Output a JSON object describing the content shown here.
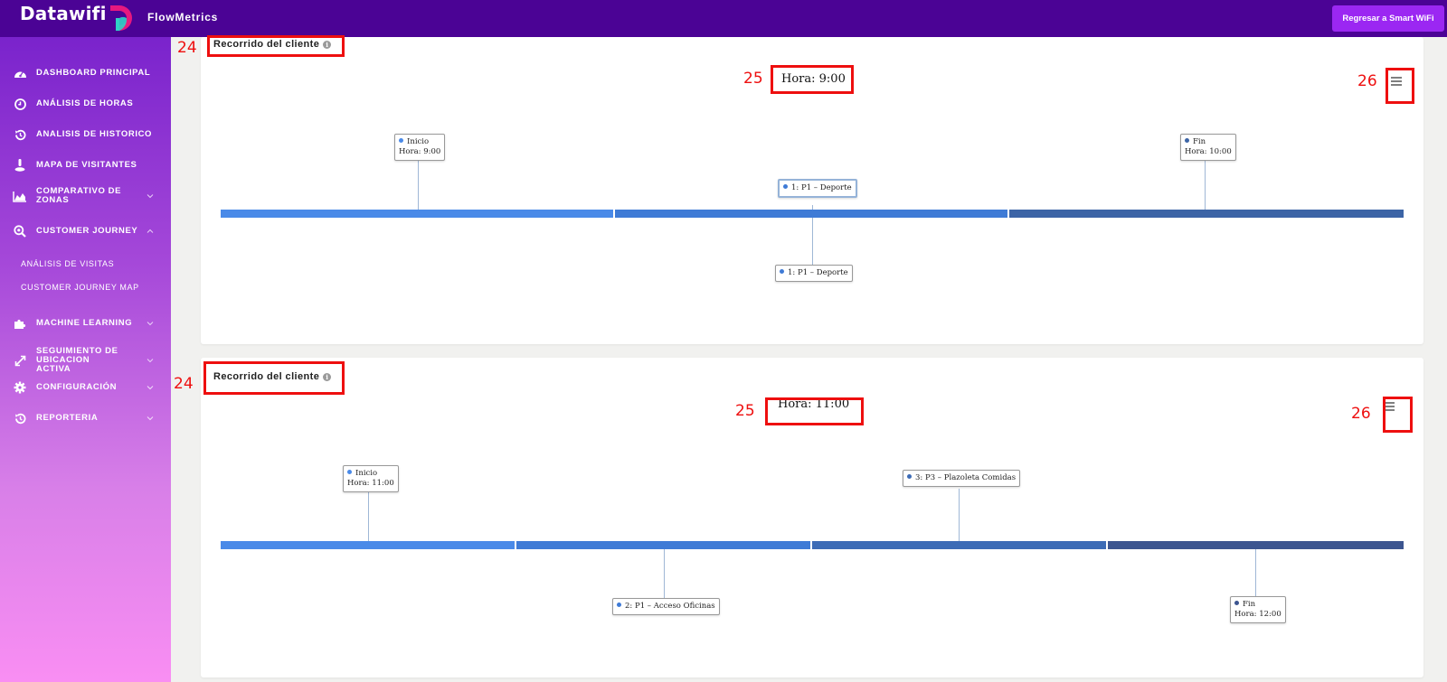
{
  "header": {
    "logo_text": "Datawifi",
    "app_name": "FlowMetrics",
    "back_button_label": "Regresar a Smart WiFi"
  },
  "sidebar": {
    "items": [
      {
        "label": "DASHBOARD PRINCIPAL",
        "icon": "gauge-icon"
      },
      {
        "label": "ANÁLISIS DE HORAS",
        "icon": "clock-icon"
      },
      {
        "label": "ANALISIS DE HISTORICO",
        "icon": "history-icon"
      },
      {
        "label": "MAPA DE VISITANTES",
        "icon": "map-pin-icon"
      },
      {
        "label": "COMPARATIVO DE ZONAS",
        "icon": "area-chart-icon"
      },
      {
        "label": "CUSTOMER JOURNEY",
        "icon": "search-icon"
      },
      {
        "label": "MACHINE LEARNING",
        "icon": "puzzle-icon"
      },
      {
        "label": "SEGUIMIENTO DE UBICACION ACTIVA",
        "icon": "arrows-icon"
      },
      {
        "label": "CONFIGURACIÓN",
        "icon": "gear-icon"
      },
      {
        "label": "REPORTERIA",
        "icon": "history-icon"
      }
    ],
    "subitems": [
      {
        "label": "ANÁLISIS DE VISITAS"
      },
      {
        "label": "CUSTOMER JOURNEY MAP"
      }
    ]
  },
  "cards": [
    {
      "title": "Recorrido del cliente",
      "hora": "Hora: 9:00",
      "annotations": {
        "title": "24",
        "hora": "25",
        "menu": "26"
      },
      "timeline": {
        "segment_colors": [
          "#4a8ae8",
          "#3f7bd6",
          "#3c64a6"
        ],
        "events": [
          {
            "line1": "Inicio",
            "line2": "Hora: 9:00",
            "dot_color": "#4a8ae8"
          },
          {
            "line1": "1: P1 – Deporte",
            "dot_color": "#3f7bd6"
          },
          {
            "line1": "1: P1 – Deporte",
            "dot_color": "#3f7bd6"
          },
          {
            "line1": "Fin",
            "line2": "Hora: 10:00",
            "dot_color": "#3c64a6"
          }
        ]
      }
    },
    {
      "title": "Recorrido del cliente",
      "hora": "Hora: 11:00",
      "annotations": {
        "title": "24",
        "hora": "25",
        "menu": "26"
      },
      "timeline": {
        "segment_colors": [
          "#4a8ae8",
          "#3f7bd6",
          "#3c6bb6",
          "#3c5590"
        ],
        "events": [
          {
            "line1": "Inicio",
            "line2": "Hora: 11:00",
            "dot_color": "#4a8ae8"
          },
          {
            "line1": "2: P1 – Acceso Oficinas",
            "dot_color": "#3f7bd6"
          },
          {
            "line1": "3: P3 – Plazoleta Comidas",
            "dot_color": "#3c6bb6"
          },
          {
            "line1": "Fin",
            "line2": "Hora: 12:00",
            "dot_color": "#3c5590"
          }
        ]
      }
    }
  ]
}
